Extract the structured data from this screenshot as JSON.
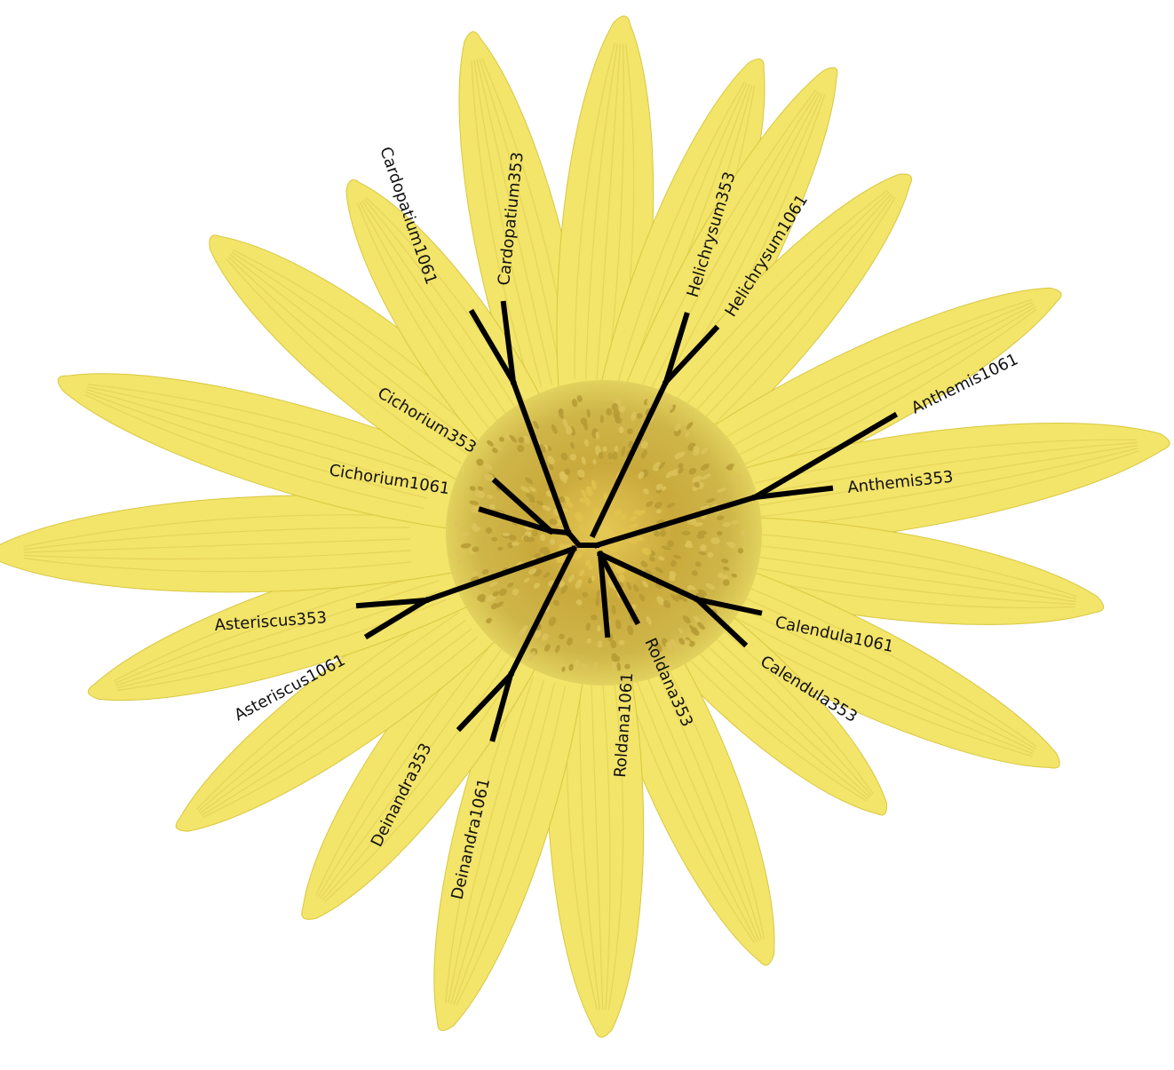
{
  "colors": {
    "petal": "#f3e46a",
    "petal_edge": "#e2d04a",
    "disc_outer": "#cdb344",
    "disc_inner": "#b69a34",
    "disc_center": "#e0c24c",
    "branch": "#000000",
    "background": "#ffffff"
  },
  "leaves": [
    {
      "key": "cardopatium1061",
      "label": "Cardopatium1061"
    },
    {
      "key": "cardopatium353",
      "label": "Cardopatium353"
    },
    {
      "key": "helichrysum353",
      "label": "Helichrysum353"
    },
    {
      "key": "helichrysum1061",
      "label": "Helichrysum1061"
    },
    {
      "key": "anthemis1061",
      "label": "Anthemis1061"
    },
    {
      "key": "anthemis353",
      "label": "Anthemis353"
    },
    {
      "key": "calendula1061",
      "label": "Calendula1061"
    },
    {
      "key": "calendula353",
      "label": "Calendula353"
    },
    {
      "key": "roldana353",
      "label": "Roldana353"
    },
    {
      "key": "roldana1061",
      "label": "Roldana1061"
    },
    {
      "key": "deinandra1061",
      "label": "Deinandra1061"
    },
    {
      "key": "deinandra353",
      "label": "Deinandra353"
    },
    {
      "key": "asteriscus1061",
      "label": "Asteriscus1061"
    },
    {
      "key": "asteriscus353",
      "label": "Asteriscus353"
    },
    {
      "key": "cichorium1061",
      "label": "Cichorium1061"
    },
    {
      "key": "cichorium353",
      "label": "Cichorium353"
    }
  ]
}
